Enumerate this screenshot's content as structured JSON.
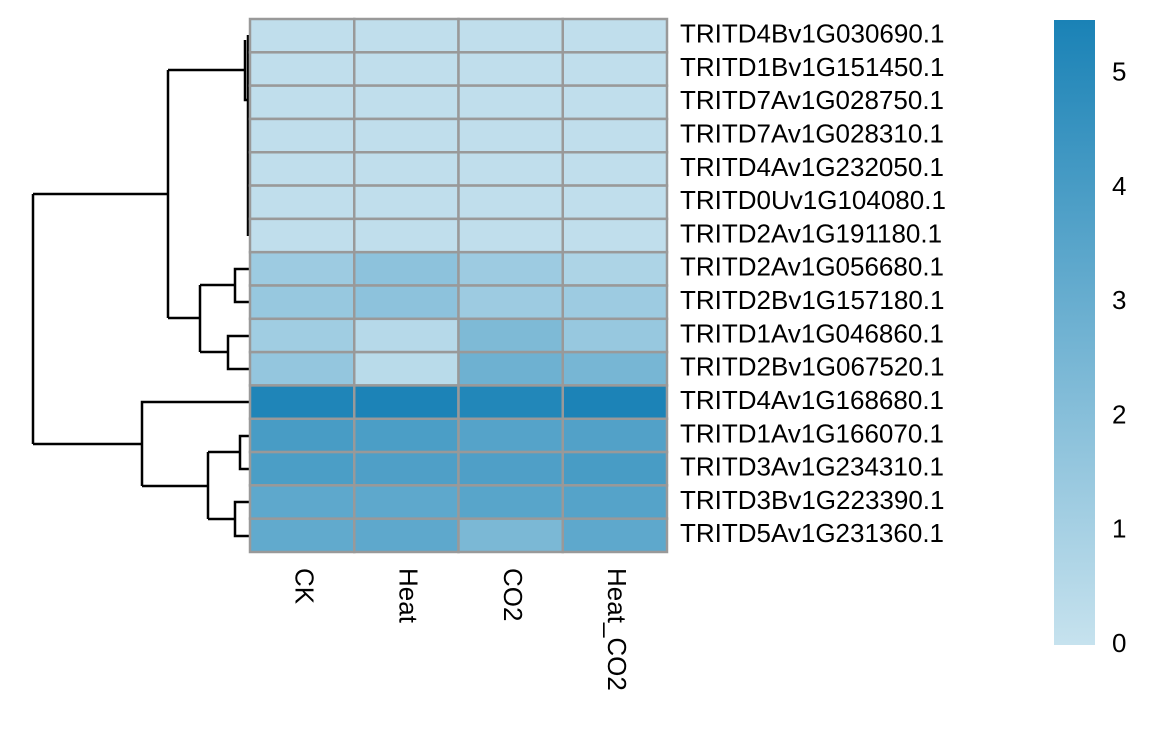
{
  "chart_data": {
    "type": "heatmap",
    "rows": [
      "TRITD4Bv1G030690.1",
      "TRITD1Bv1G151450.1",
      "TRITD7Av1G028750.1",
      "TRITD7Av1G028310.1",
      "TRITD4Av1G232050.1",
      "TRITD0Uv1G104080.1",
      "TRITD2Av1G191180.1",
      "TRITD2Av1G056680.1",
      "TRITD2Bv1G157180.1",
      "TRITD1Av1G046860.1",
      "TRITD2Bv1G067520.1",
      "TRITD4Av1G168680.1",
      "TRITD1Av1G166070.1",
      "TRITD3Av1G234310.1",
      "TRITD3Bv1G223390.1",
      "TRITD5Av1G231360.1"
    ],
    "columns": [
      "CK",
      "Heat",
      "CO2",
      "Heat_CO2"
    ],
    "values": [
      [
        0.2,
        0.2,
        0.2,
        0.2
      ],
      [
        0.2,
        0.2,
        0.2,
        0.2
      ],
      [
        0.2,
        0.2,
        0.2,
        0.2
      ],
      [
        0.2,
        0.2,
        0.2,
        0.2
      ],
      [
        0.2,
        0.2,
        0.2,
        0.2
      ],
      [
        0.2,
        0.2,
        0.2,
        0.2
      ],
      [
        0.2,
        0.2,
        0.2,
        0.2
      ],
      [
        1.3,
        1.8,
        1.3,
        0.8
      ],
      [
        1.5,
        1.8,
        1.3,
        1.3
      ],
      [
        1.2,
        0.5,
        2.3,
        1.5
      ],
      [
        1.6,
        0.4,
        2.8,
        2.5
      ],
      [
        5.3,
        5.4,
        5.2,
        5.4
      ],
      [
        4.0,
        3.9,
        3.6,
        3.7
      ],
      [
        3.9,
        3.8,
        3.8,
        4.0
      ],
      [
        3.3,
        3.3,
        3.5,
        3.6
      ],
      [
        3.2,
        3.3,
        2.4,
        3.3
      ]
    ],
    "zlim": [
      0,
      5.47
    ],
    "zticks": [
      0,
      1,
      2,
      3,
      4,
      5
    ],
    "colors": [
      "#c6e2ee",
      "#1a82b6"
    ]
  }
}
